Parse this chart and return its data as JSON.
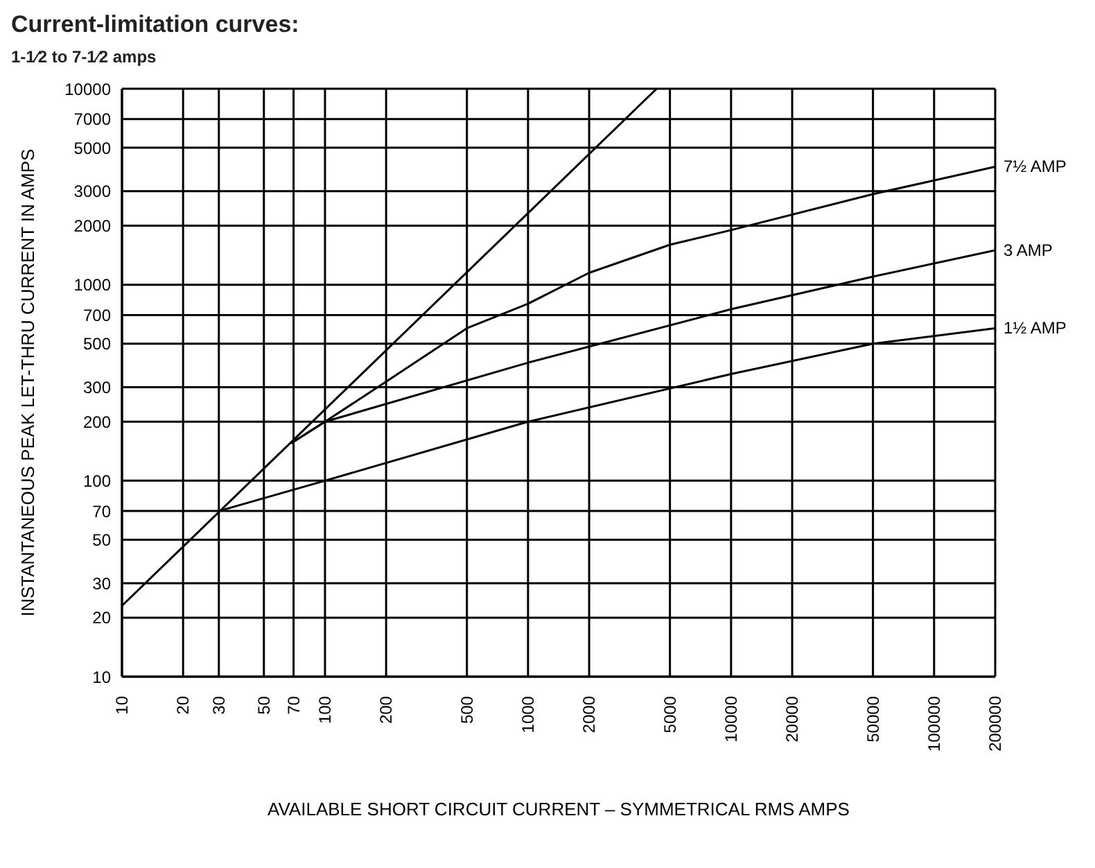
{
  "chart_data": {
    "type": "line",
    "title": "Current-limitation curves:",
    "subtitle": "1-1⁄2 to 7-1⁄2 amps",
    "xlabel": "AVAILABLE  SHORT  CIRCUIT  CURRENT  –  SYMMETRICAL  RMS  AMPS",
    "ylabel": "INSTANTANEOUS  PEAK  LET-THRU  CURRENT  IN  AMPS",
    "log": "xy",
    "grid": true,
    "legend": false,
    "marker": "none",
    "line_style": "solid",
    "xlim": [
      10,
      200000
    ],
    "ylim": [
      10,
      10000
    ],
    "xticks": [
      10,
      20,
      30,
      50,
      70,
      100,
      200,
      500,
      1000,
      2000,
      5000,
      10000,
      20000,
      50000,
      100000,
      200000
    ],
    "yticks": [
      10,
      20,
      30,
      50,
      70,
      100,
      200,
      300,
      500,
      700,
      1000,
      2000,
      3000,
      5000,
      7000,
      10000
    ],
    "series": [
      {
        "color": "#000000",
        "x": [
          10,
          4300
        ],
        "values": [
          23,
          10000
        ]
      },
      {
        "name": "7½ AMP",
        "color": "#000000",
        "x": [
          68,
          100,
          200,
          500,
          1000,
          2000,
          5000,
          10000,
          50000,
          200000
        ],
        "values": [
          155,
          200,
          320,
          600,
          800,
          1150,
          1600,
          1900,
          2900,
          4000
        ]
      },
      {
        "name": "3 AMP",
        "color": "#000000",
        "x": [
          68,
          100,
          1000,
          10000,
          50000,
          200000
        ],
        "values": [
          155,
          200,
          400,
          750,
          1100,
          1500
        ]
      },
      {
        "name": "1½ AMP",
        "color": "#000000",
        "x": [
          30,
          100,
          1000,
          10000,
          50000,
          200000
        ],
        "values": [
          70,
          100,
          200,
          350,
          500,
          600
        ]
      }
    ]
  }
}
